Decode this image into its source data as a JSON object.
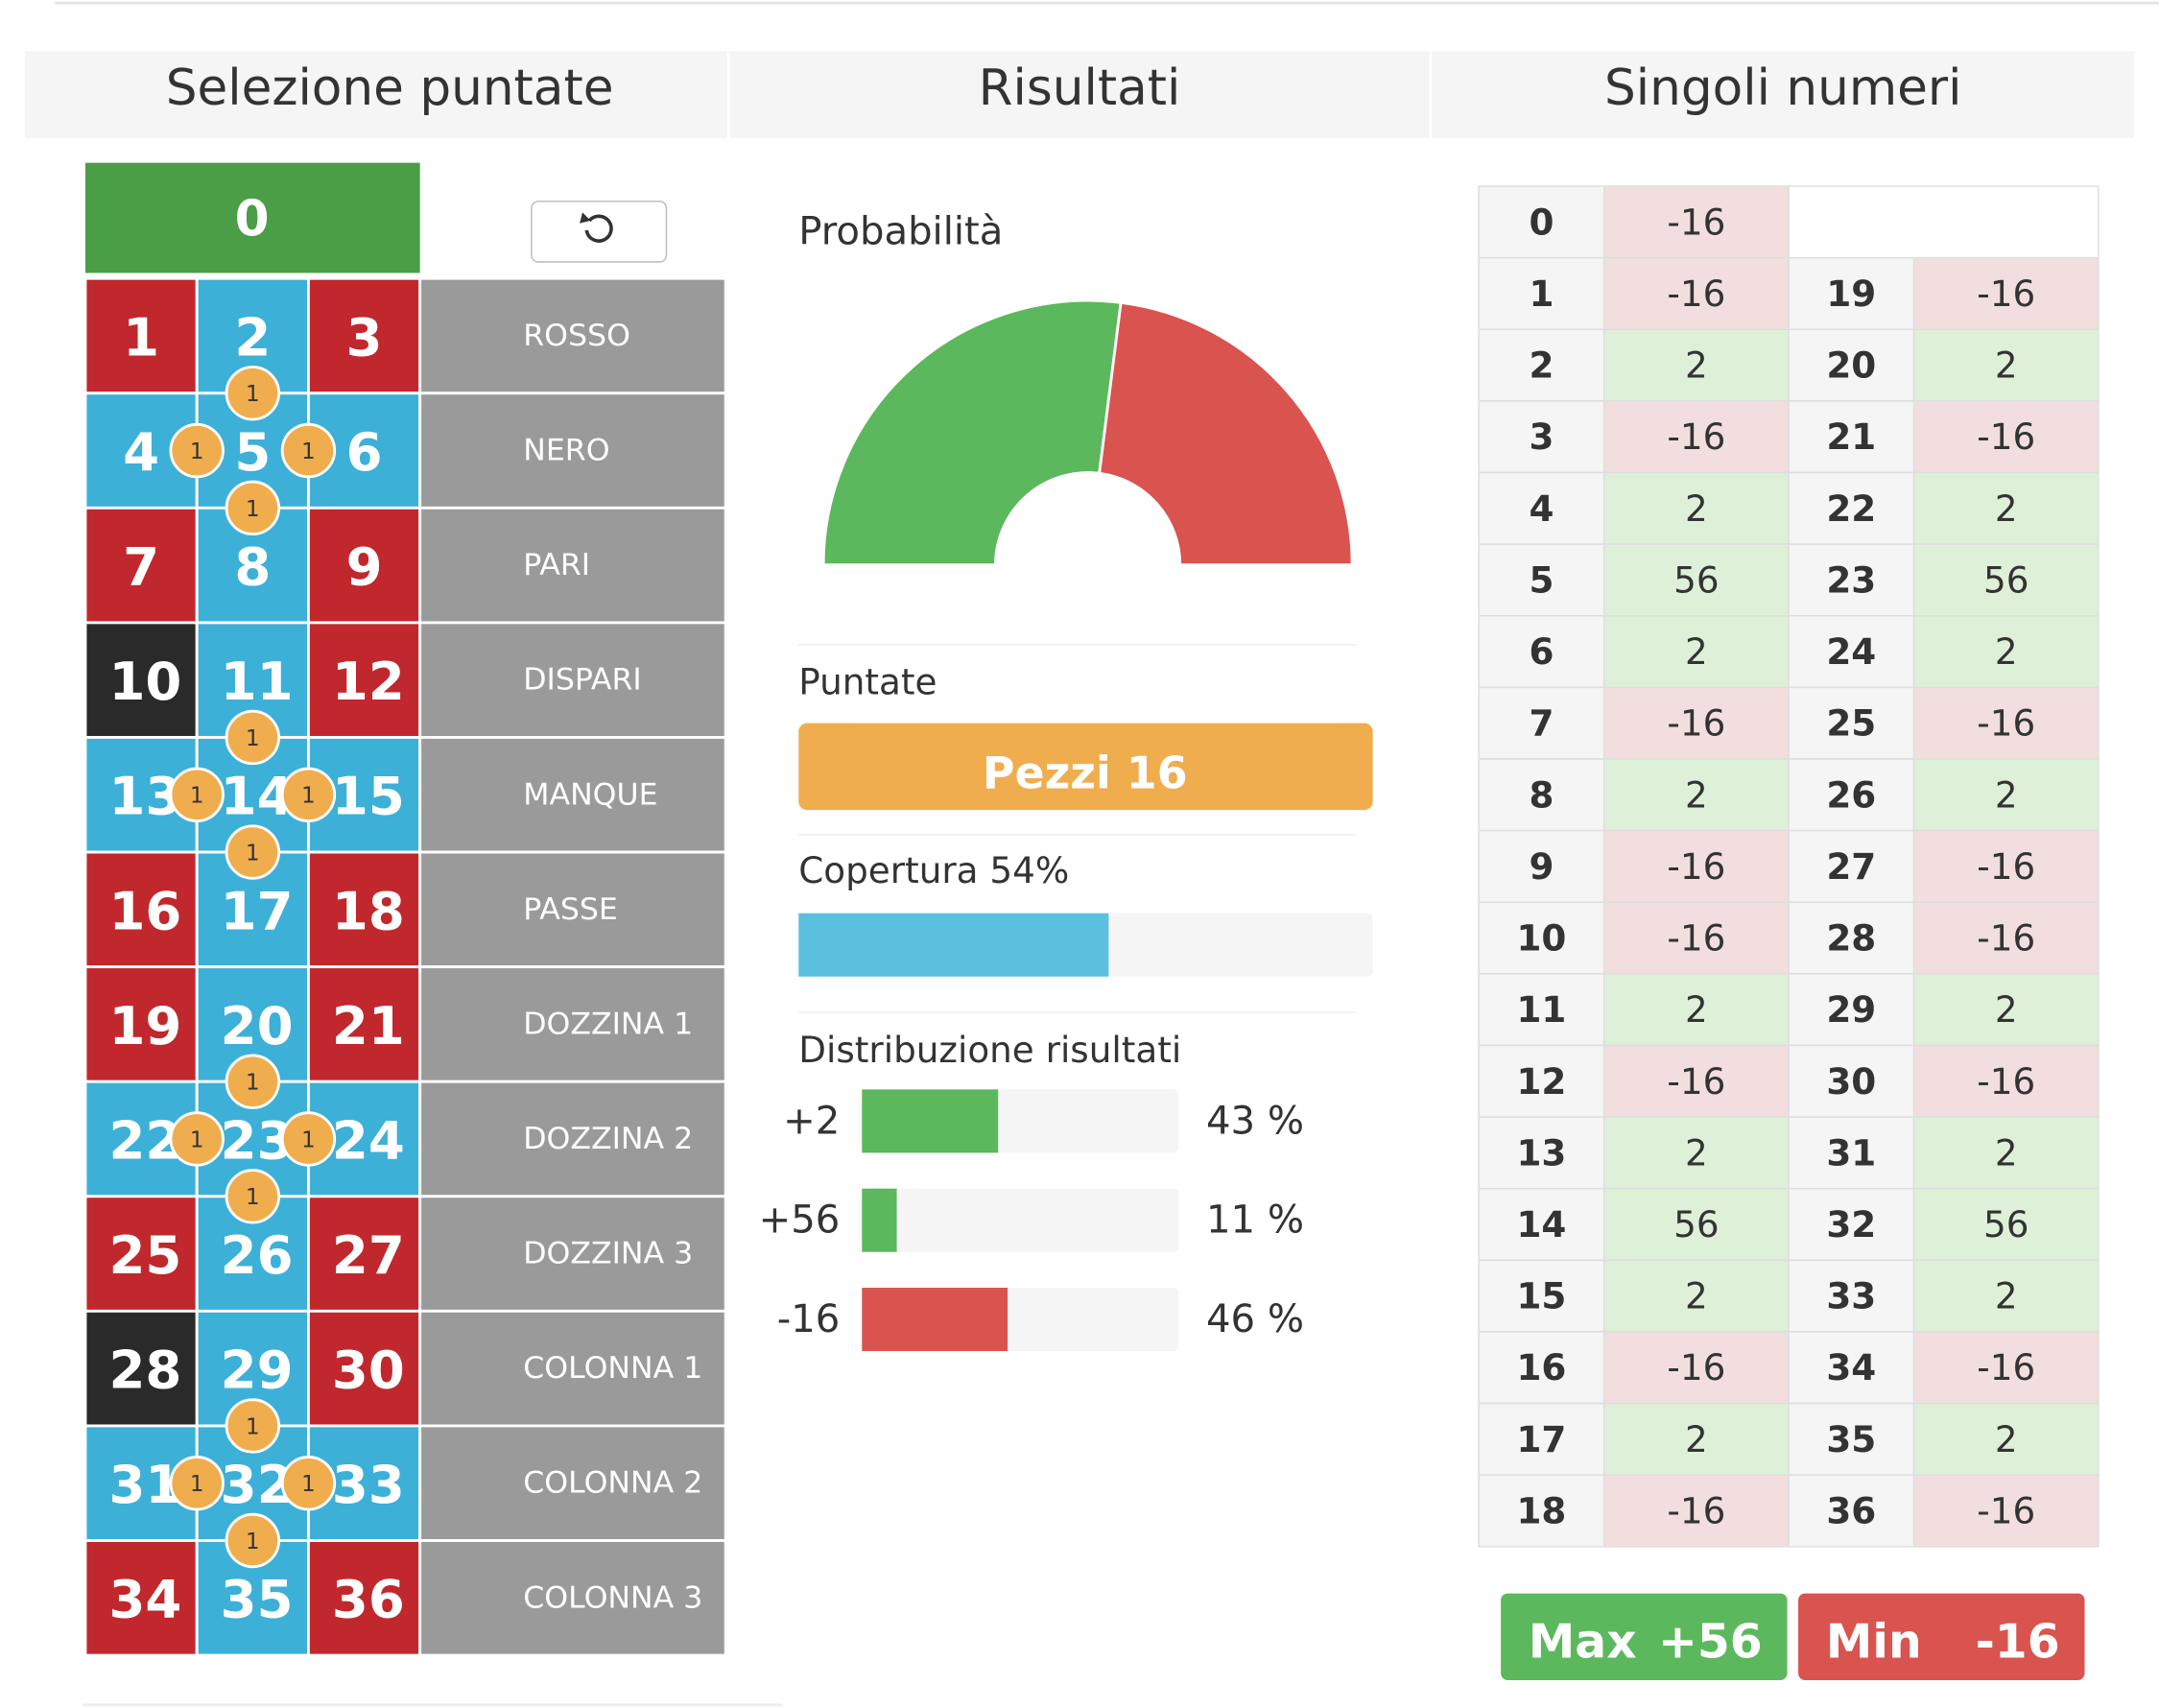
{
  "headers": [
    "Selezione puntate",
    "Risultati",
    "Singoli numeri"
  ],
  "board": {
    "zero": "0",
    "cells": [
      {
        "label": "1",
        "color": "#c0282d"
      },
      {
        "label": "2",
        "color": "#3db0d8"
      },
      {
        "label": "3",
        "color": "#c0282d"
      },
      {
        "label": "4",
        "color": "#3db0d8"
      },
      {
        "label": "5",
        "color": "#3db0d8"
      },
      {
        "label": "6",
        "color": "#3db0d8"
      },
      {
        "label": "7",
        "color": "#c0282d"
      },
      {
        "label": "8",
        "color": "#3db0d8"
      },
      {
        "label": "9",
        "color": "#c0282d"
      },
      {
        "label": "10",
        "color": "#2a2a2a"
      },
      {
        "label": "11",
        "color": "#3db0d8"
      },
      {
        "label": "12",
        "color": "#c0282d"
      },
      {
        "label": "13",
        "color": "#3db0d8"
      },
      {
        "label": "14",
        "color": "#3db0d8"
      },
      {
        "label": "15",
        "color": "#3db0d8"
      },
      {
        "label": "16",
        "color": "#c0282d"
      },
      {
        "label": "17",
        "color": "#3db0d8"
      },
      {
        "label": "18",
        "color": "#c0282d"
      },
      {
        "label": "19",
        "color": "#c0282d"
      },
      {
        "label": "20",
        "color": "#3db0d8"
      },
      {
        "label": "21",
        "color": "#c0282d"
      },
      {
        "label": "22",
        "color": "#3db0d8"
      },
      {
        "label": "23",
        "color": "#3db0d8"
      },
      {
        "label": "24",
        "color": "#3db0d8"
      },
      {
        "label": "25",
        "color": "#c0282d"
      },
      {
        "label": "26",
        "color": "#3db0d8"
      },
      {
        "label": "27",
        "color": "#c0282d"
      },
      {
        "label": "28",
        "color": "#2a2a2a"
      },
      {
        "label": "29",
        "color": "#3db0d8"
      },
      {
        "label": "30",
        "color": "#c0282d"
      },
      {
        "label": "31",
        "color": "#3db0d8"
      },
      {
        "label": "32",
        "color": "#3db0d8"
      },
      {
        "label": "33",
        "color": "#3db0d8"
      },
      {
        "label": "34",
        "color": "#c0282d"
      },
      {
        "label": "35",
        "color": "#3db0d8"
      },
      {
        "label": "36",
        "color": "#c0282d"
      }
    ],
    "chips": [
      "1",
      "1",
      "1",
      "1",
      "1",
      "1",
      "1",
      "1",
      "1",
      "1",
      "1",
      "1",
      "1",
      "1",
      "1",
      "1"
    ],
    "outside": [
      "ROSSO",
      "NERO",
      "PARI",
      "DISPARI",
      "MANQUE",
      "PASSE",
      "DOZZINA 1",
      "DOZZINA 2",
      "DOZZINA 3",
      "COLONNA 1",
      "COLONNA 2",
      "COLONNA 3"
    ]
  },
  "results": {
    "probability_title": "Probabilità",
    "gauge": {
      "values": [
        54,
        46
      ],
      "colors": [
        "#5cb85c",
        "#d9534f"
      ]
    },
    "bets_title": "Puntate",
    "bets_label": "Pezzi 16",
    "coverage": {
      "label": "Copertura 54%",
      "value": 54,
      "color": "#5bc0de"
    },
    "distribution_title": "Distribuzione risultati",
    "distribution": [
      {
        "label": "+2",
        "value": 43,
        "value_label": "43 %",
        "color": "#5cb85c"
      },
      {
        "label": "+56",
        "value": 11,
        "value_label": "11 %",
        "color": "#5cb85c"
      },
      {
        "label": "-16",
        "value": 46,
        "value_label": "46 %",
        "color": "#d9534f"
      }
    ]
  },
  "singles": {
    "rows": [
      [
        0,
        -16
      ],
      [
        1,
        -16
      ],
      [
        2,
        2
      ],
      [
        3,
        -16
      ],
      [
        4,
        2
      ],
      [
        5,
        56
      ],
      [
        6,
        2
      ],
      [
        7,
        -16
      ],
      [
        8,
        2
      ],
      [
        9,
        -16
      ],
      [
        10,
        -16
      ],
      [
        11,
        2
      ],
      [
        12,
        -16
      ],
      [
        13,
        2
      ],
      [
        14,
        56
      ],
      [
        15,
        2
      ],
      [
        16,
        -16
      ],
      [
        17,
        2
      ],
      [
        18,
        -16
      ],
      [
        19,
        -16
      ],
      [
        20,
        2
      ],
      [
        21,
        -16
      ],
      [
        22,
        2
      ],
      [
        23,
        56
      ],
      [
        24,
        2
      ],
      [
        25,
        -16
      ],
      [
        26,
        2
      ],
      [
        27,
        -16
      ],
      [
        28,
        -16
      ],
      [
        29,
        2
      ],
      [
        30,
        -16
      ],
      [
        31,
        2
      ],
      [
        32,
        56
      ],
      [
        33,
        2
      ],
      [
        34,
        -16
      ],
      [
        35,
        2
      ],
      [
        36,
        -16
      ]
    ],
    "max": {
      "label": "Max",
      "value_label": "+56"
    },
    "min": {
      "label": "Min",
      "value_label": "-16"
    }
  }
}
